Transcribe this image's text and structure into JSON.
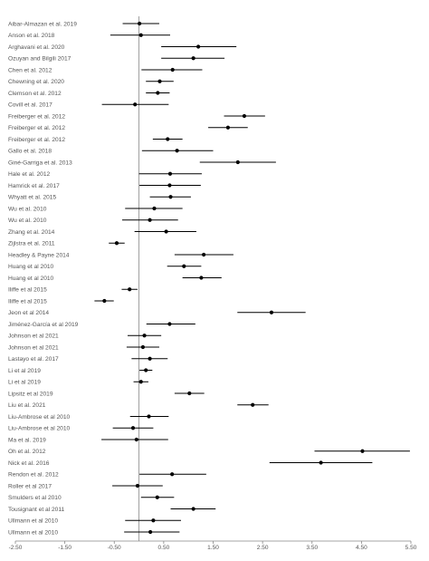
{
  "chart_data": {
    "type": "forest",
    "title": "",
    "xlabel": "",
    "ylabel": "",
    "xlim": [
      -2.5,
      5.5
    ],
    "xticks": [
      -2.5,
      -1.5,
      -0.5,
      0.5,
      1.5,
      2.5,
      3.5,
      4.5,
      5.5
    ],
    "xtick_labels": [
      "-2.50",
      "-1.50",
      "-0.50",
      "0.50",
      "1.50",
      "2.50",
      "3.50",
      "4.50",
      "5.50"
    ],
    "reference_line": 0,
    "grid": false,
    "colors": {
      "marker": "#000000",
      "ci_line": "#000000",
      "reference": "#888888",
      "axis": "#888888",
      "text": "#555555"
    },
    "studies": [
      {
        "label": "Aibar-Almazan et al. 2019",
        "estimate": 0.01,
        "ci_low": -0.33,
        "ci_high": 0.41
      },
      {
        "label": "Anson et al. 2018",
        "estimate": 0.04,
        "ci_low": -0.58,
        "ci_high": 0.63
      },
      {
        "label": "Arghavani et al. 2020",
        "estimate": 1.2,
        "ci_low": 0.45,
        "ci_high": 1.97
      },
      {
        "label": "Ozuyan and Bilgili 2017",
        "estimate": 1.1,
        "ci_low": 0.45,
        "ci_high": 1.73
      },
      {
        "label": "Chen et al. 2012",
        "estimate": 0.68,
        "ci_low": 0.05,
        "ci_high": 1.28
      },
      {
        "label": "Chewning et al. 2020",
        "estimate": 0.42,
        "ci_low": 0.14,
        "ci_high": 0.7
      },
      {
        "label": "Clemson et al. 2012",
        "estimate": 0.38,
        "ci_low": 0.14,
        "ci_high": 0.62
      },
      {
        "label": "Covill et al. 2017",
        "estimate": -0.08,
        "ci_low": -0.75,
        "ci_high": 0.6
      },
      {
        "label": "Freiberger et al. 2012",
        "estimate": 2.13,
        "ci_low": 1.72,
        "ci_high": 2.55
      },
      {
        "label": "Freiberger et al. 2012",
        "estimate": 1.8,
        "ci_low": 1.4,
        "ci_high": 2.2
      },
      {
        "label": "Freiberger et al. 2012",
        "estimate": 0.58,
        "ci_low": 0.28,
        "ci_high": 0.88
      },
      {
        "label": "Gallo et al. 2018",
        "estimate": 0.77,
        "ci_low": 0.06,
        "ci_high": 1.5
      },
      {
        "label": "Giné-Garriga et al. 2013",
        "estimate": 2.0,
        "ci_low": 1.23,
        "ci_high": 2.77
      },
      {
        "label": "Hale et al. 2012",
        "estimate": 0.63,
        "ci_low": 0.0,
        "ci_high": 1.27
      },
      {
        "label": "Hamrick et al. 2017",
        "estimate": 0.62,
        "ci_low": 0.01,
        "ci_high": 1.25
      },
      {
        "label": "Whyatt et al. 2015",
        "estimate": 0.64,
        "ci_low": 0.22,
        "ci_high": 1.05
      },
      {
        "label": "Wu et al. 2010",
        "estimate": 0.31,
        "ci_low": -0.28,
        "ci_high": 0.88
      },
      {
        "label": "Wu et al. 2010",
        "estimate": 0.22,
        "ci_low": -0.34,
        "ci_high": 0.79
      },
      {
        "label": "Zhang et al. 2014",
        "estimate": 0.55,
        "ci_low": -0.09,
        "ci_high": 1.16
      },
      {
        "label": "Zijlstra et al. 2011",
        "estimate": -0.45,
        "ci_low": -0.61,
        "ci_high": -0.29
      },
      {
        "label": "Headley & Payne 2014",
        "estimate": 1.31,
        "ci_low": 0.72,
        "ci_high": 1.91
      },
      {
        "label": "Huang et al 2010",
        "estimate": 0.91,
        "ci_low": 0.57,
        "ci_high": 1.26
      },
      {
        "label": "Huang et al 2010",
        "estimate": 1.26,
        "ci_low": 0.88,
        "ci_high": 1.67
      },
      {
        "label": "Iliffe et al 2015",
        "estimate": -0.19,
        "ci_low": -0.35,
        "ci_high": -0.03
      },
      {
        "label": "Iliffe et al 2015",
        "estimate": -0.7,
        "ci_low": -0.9,
        "ci_high": -0.51
      },
      {
        "label": "Jeon et al 2014",
        "estimate": 2.68,
        "ci_low": 1.99,
        "ci_high": 3.37
      },
      {
        "label": "Jiménez-García et al 2019",
        "estimate": 0.62,
        "ci_low": 0.15,
        "ci_high": 1.14
      },
      {
        "label": "Johnson et al 2021",
        "estimate": 0.11,
        "ci_low": -0.23,
        "ci_high": 0.45
      },
      {
        "label": "Johnson et al 2021",
        "estimate": 0.08,
        "ci_low": -0.25,
        "ci_high": 0.41
      },
      {
        "label": "Lastayo et al. 2017",
        "estimate": 0.22,
        "ci_low": -0.15,
        "ci_high": 0.58
      },
      {
        "label": "Li et al 2019",
        "estimate": 0.14,
        "ci_low": 0.01,
        "ci_high": 0.27
      },
      {
        "label": "Li et al 2019",
        "estimate": 0.04,
        "ci_low": -0.11,
        "ci_high": 0.19
      },
      {
        "label": "Lipsitz et al 2019",
        "estimate": 1.02,
        "ci_low": 0.72,
        "ci_high": 1.32
      },
      {
        "label": "Liu et al. 2021",
        "estimate": 2.3,
        "ci_low": 1.99,
        "ci_high": 2.62
      },
      {
        "label": "Liu-Ambrose et al 2010",
        "estimate": 0.2,
        "ci_low": -0.18,
        "ci_high": 0.6
      },
      {
        "label": "Liu-Ambrose et al 2010",
        "estimate": -0.12,
        "ci_low": -0.53,
        "ci_high": 0.29
      },
      {
        "label": "Ma et al. 2019",
        "estimate": -0.05,
        "ci_low": -0.76,
        "ci_high": 0.59
      },
      {
        "label": "Oh et al. 2012",
        "estimate": 4.52,
        "ci_low": 3.55,
        "ci_high": 5.48
      },
      {
        "label": "Nick et al. 2016",
        "estimate": 3.68,
        "ci_low": 2.64,
        "ci_high": 4.72
      },
      {
        "label": "Rendon et al. 2012",
        "estimate": 0.67,
        "ci_low": 0.01,
        "ci_high": 1.36
      },
      {
        "label": "Roller et al 2017",
        "estimate": -0.03,
        "ci_low": -0.54,
        "ci_high": 0.48
      },
      {
        "label": "Smulders et al 2010",
        "estimate": 0.37,
        "ci_low": 0.04,
        "ci_high": 0.71
      },
      {
        "label": "Tousignant et al 2011",
        "estimate": 1.1,
        "ci_low": 0.64,
        "ci_high": 1.55
      },
      {
        "label": "Ullmann et al 2010",
        "estimate": 0.29,
        "ci_low": -0.28,
        "ci_high": 0.85
      },
      {
        "label": "Ullmann et al 2010",
        "estimate": 0.23,
        "ci_low": -0.3,
        "ci_high": 0.82
      }
    ]
  }
}
